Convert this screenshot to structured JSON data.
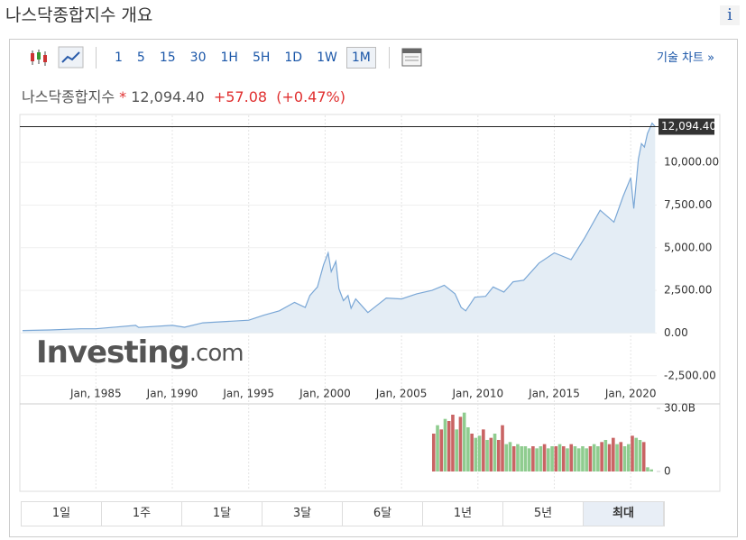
{
  "header": {
    "title": "나스닥종합지수 개요",
    "info": "i"
  },
  "toolbar": {
    "intervals": [
      "1",
      "5",
      "15",
      "30",
      "1H",
      "5H",
      "1D",
      "1W",
      "1M"
    ],
    "selected": "1M",
    "tech_chart": "기술 차트 »"
  },
  "quote": {
    "name": "나스닥종합지수",
    "star": "*",
    "price": "12,094.40",
    "change": "+57.08",
    "change_pct": "(+0.47%)"
  },
  "chart_data": {
    "type": "line",
    "color": "#7aa7d6",
    "fill": "#e4edf5",
    "x": [
      1980.2,
      1982,
      1984,
      1985,
      1987.6,
      1987.8,
      1990,
      1990.8,
      1992,
      1995,
      1996,
      1997,
      1998,
      1998.7,
      1999,
      1999.5,
      1999.9,
      2000.2,
      2000.4,
      2000.7,
      2000.9,
      2001.2,
      2001.5,
      2001.7,
      2002,
      2002.8,
      2003.5,
      2004,
      2005,
      2006,
      2007,
      2007.8,
      2008.5,
      2008.9,
      2009.2,
      2009.8,
      2010.5,
      2011,
      2011.7,
      2012.3,
      2013,
      2014,
      2015,
      2016.1,
      2017,
      2018,
      2018.9,
      2019.5,
      2020,
      2020.2,
      2020.5,
      2020.7,
      2020.9,
      2021.1,
      2021.4,
      2021.6
    ],
    "values": [
      150,
      180,
      250,
      250,
      450,
      330,
      450,
      340,
      600,
      750,
      1050,
      1300,
      1800,
      1500,
      2200,
      2700,
      4000,
      4700,
      3600,
      4200,
      2600,
      1900,
      2200,
      1450,
      2000,
      1200,
      1700,
      2050,
      2000,
      2300,
      2500,
      2800,
      2300,
      1500,
      1300,
      2100,
      2150,
      2700,
      2400,
      3000,
      3100,
      4100,
      4700,
      4300,
      5600,
      7200,
      6500,
      8000,
      9100,
      7300,
      10200,
      11100,
      10900,
      11700,
      12300,
      12094.4
    ],
    "xlim": [
      1980.2,
      2021.7
    ],
    "xticks": [
      {
        "value": 1985,
        "label": "Jan, 1985"
      },
      {
        "value": 1990,
        "label": "Jan, 1990"
      },
      {
        "value": 1995,
        "label": "Jan, 1995"
      },
      {
        "value": 2000,
        "label": "Jan, 2000"
      },
      {
        "value": 2005,
        "label": "Jan, 2005"
      },
      {
        "value": 2010,
        "label": "Jan, 2010"
      },
      {
        "value": 2015,
        "label": "Jan, 2015"
      },
      {
        "value": 2020,
        "label": "Jan, 2020"
      }
    ],
    "ylim": [
      -3200,
      12650
    ],
    "yticks": [
      {
        "value": -2500,
        "label": "-2,500.00"
      },
      {
        "value": 0,
        "label": "0.00"
      },
      {
        "value": 2500,
        "label": "2,500.00"
      },
      {
        "value": 5000,
        "label": "5,000.00"
      },
      {
        "value": 7500,
        "label": "7,500.00"
      },
      {
        "value": 10000,
        "label": "10,000.00"
      }
    ],
    "last": {
      "value": 12094.4,
      "label": "12,094.40"
    },
    "grid": true,
    "watermark": [
      "Investing",
      ".com"
    ],
    "volume": {
      "x": [
        2007,
        2007.25,
        2007.5,
        2007.75,
        2008,
        2008.25,
        2008.5,
        2008.75,
        2009,
        2009.25,
        2009.5,
        2009.75,
        2010,
        2010.25,
        2010.5,
        2010.75,
        2011,
        2011.25,
        2011.5,
        2011.75,
        2012,
        2012.25,
        2012.5,
        2012.75,
        2013,
        2013.25,
        2013.5,
        2013.75,
        2014,
        2014.25,
        2014.5,
        2014.75,
        2015,
        2015.25,
        2015.5,
        2015.75,
        2016,
        2016.25,
        2016.5,
        2016.75,
        2017,
        2017.25,
        2017.5,
        2017.75,
        2018,
        2018.25,
        2018.5,
        2018.75,
        2019,
        2019.25,
        2019.5,
        2019.75,
        2020,
        2020.25,
        2020.5,
        2020.75,
        2021,
        2021.25
      ],
      "values": [
        18,
        22,
        20,
        25,
        24,
        27,
        20,
        26,
        28,
        21,
        18,
        16,
        17,
        20,
        15,
        16,
        18,
        15,
        22,
        13,
        14,
        12,
        13,
        12,
        12,
        11,
        12,
        11,
        12,
        13,
        11,
        12,
        12,
        13,
        12,
        11,
        13,
        12,
        11,
        12,
        11,
        12,
        13,
        12,
        14,
        15,
        13,
        16,
        13,
        14,
        12,
        13,
        17,
        16,
        15,
        14,
        2,
        1
      ],
      "colors": [
        "#c96464",
        "#8fcc8f",
        "#c96464",
        "#8fcc8f",
        "#c96464",
        "#c96464",
        "#8fcc8f",
        "#c96464",
        "#8fcc8f",
        "#8fcc8f",
        "#c96464",
        "#8fcc8f",
        "#8fcc8f",
        "#c96464",
        "#8fcc8f",
        "#c96464",
        "#8fcc8f",
        "#c96464",
        "#c96464",
        "#8fcc8f",
        "#8fcc8f",
        "#c96464",
        "#8fcc8f",
        "#8fcc8f",
        "#8fcc8f",
        "#8fcc8f",
        "#c96464",
        "#8fcc8f",
        "#8fcc8f",
        "#c96464",
        "#8fcc8f",
        "#8fcc8f",
        "#c96464",
        "#8fcc8f",
        "#c96464",
        "#8fcc8f",
        "#c96464",
        "#8fcc8f",
        "#8fcc8f",
        "#8fcc8f",
        "#8fcc8f",
        "#c96464",
        "#8fcc8f",
        "#8fcc8f",
        "#c96464",
        "#8fcc8f",
        "#c96464",
        "#c96464",
        "#8fcc8f",
        "#c96464",
        "#8fcc8f",
        "#8fcc8f",
        "#c96464",
        "#8fcc8f",
        "#8fcc8f",
        "#c96464",
        "#8fcc8f",
        "#8fcc8f"
      ],
      "ylim": [
        0,
        30
      ],
      "yticks": [
        {
          "value": 30,
          "label": "30.0B"
        },
        0
      ]
    }
  },
  "ranges": {
    "items": [
      "1일",
      "1주",
      "1달",
      "3달",
      "6달",
      "1년",
      "5년",
      "최대"
    ],
    "selected": "최대"
  }
}
